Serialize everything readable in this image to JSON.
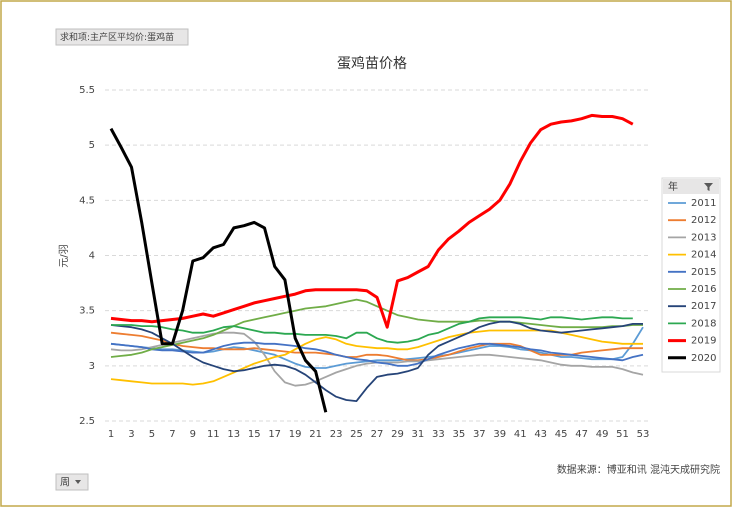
{
  "chart_data": {
    "type": "line",
    "filter_label": "求和项:主产区平均价:蛋鸡苗",
    "title": "蛋鸡苗价格",
    "y_label": "元/羽",
    "legend_title": "年",
    "x_filter_label": "周",
    "source": "数据来源：博亚和讯 混沌天成研究院",
    "categories": [
      1,
      null,
      3,
      null,
      5,
      null,
      7,
      null,
      9,
      null,
      11,
      null,
      13,
      null,
      15,
      null,
      17,
      null,
      19,
      null,
      21,
      null,
      23,
      null,
      25,
      null,
      27,
      null,
      29,
      null,
      31,
      null,
      33,
      null,
      35,
      null,
      37,
      null,
      39,
      null,
      41,
      null,
      43,
      null,
      45,
      null,
      47,
      null,
      49,
      null,
      51,
      null,
      53
    ],
    "ylim": [
      2.5,
      5.5
    ],
    "yticks": [
      2.5,
      3,
      3.5,
      4,
      4.5,
      5,
      5.5
    ],
    "grid": true,
    "legend": "right",
    "series": [
      {
        "name": "2011",
        "color": "#5b9bd5",
        "values": [
          3.2,
          3.19,
          3.18,
          3.17,
          3.16,
          3.15,
          3.15,
          3.14,
          3.13,
          3.12,
          3.13,
          3.15,
          3.17,
          3.16,
          3.14,
          3.12,
          3.1,
          3.06,
          3.02,
          2.99,
          2.98,
          2.98,
          3.0,
          3.02,
          3.03,
          3.04,
          3.05,
          3.05,
          3.05,
          3.06,
          3.07,
          3.08,
          3.09,
          3.1,
          3.12,
          3.14,
          3.16,
          3.18,
          3.18,
          3.17,
          3.15,
          3.14,
          3.12,
          3.1,
          3.08,
          3.08,
          3.07,
          3.06,
          3.06,
          3.06,
          3.08,
          3.2,
          3.35
        ]
      },
      {
        "name": "2012",
        "color": "#ed7d31",
        "values": [
          3.3,
          3.29,
          3.28,
          3.27,
          3.25,
          3.23,
          3.2,
          3.18,
          3.17,
          3.16,
          3.16,
          3.15,
          3.15,
          3.15,
          3.16,
          3.15,
          3.14,
          3.13,
          3.12,
          3.12,
          3.12,
          3.11,
          3.1,
          3.08,
          3.08,
          3.1,
          3.1,
          3.09,
          3.07,
          3.05,
          3.05,
          3.06,
          3.08,
          3.1,
          3.13,
          3.16,
          3.18,
          3.2,
          3.2,
          3.2,
          3.18,
          3.14,
          3.1,
          3.1,
          3.1,
          3.1,
          3.12,
          3.13,
          3.14,
          3.15,
          3.16,
          3.16,
          3.16
        ]
      },
      {
        "name": "2013",
        "color": "#a5a5a5",
        "values": [
          3.15,
          3.14,
          3.14,
          3.15,
          3.17,
          3.19,
          3.21,
          3.23,
          3.25,
          3.27,
          3.29,
          3.3,
          3.3,
          3.29,
          3.22,
          3.1,
          2.95,
          2.85,
          2.82,
          2.83,
          2.86,
          2.9,
          2.94,
          2.97,
          3.0,
          3.02,
          3.03,
          3.03,
          3.03,
          3.04,
          3.04,
          3.05,
          3.06,
          3.07,
          3.08,
          3.09,
          3.1,
          3.1,
          3.09,
          3.08,
          3.07,
          3.06,
          3.05,
          3.03,
          3.01,
          3.0,
          3.0,
          2.99,
          2.99,
          2.99,
          2.97,
          2.94,
          2.92
        ]
      },
      {
        "name": "2014",
        "color": "#ffc000",
        "values": [
          2.88,
          2.87,
          2.86,
          2.85,
          2.84,
          2.84,
          2.84,
          2.84,
          2.83,
          2.84,
          2.86,
          2.9,
          2.94,
          2.98,
          3.02,
          3.05,
          3.08,
          3.1,
          3.15,
          3.2,
          3.24,
          3.26,
          3.24,
          3.2,
          3.18,
          3.17,
          3.16,
          3.16,
          3.15,
          3.15,
          3.17,
          3.2,
          3.23,
          3.26,
          3.28,
          3.3,
          3.31,
          3.32,
          3.32,
          3.32,
          3.32,
          3.32,
          3.32,
          3.32,
          3.3,
          3.28,
          3.26,
          3.24,
          3.22,
          3.21,
          3.2,
          3.2,
          3.2
        ]
      },
      {
        "name": "2015",
        "color": "#4472c4",
        "values": [
          3.2,
          3.19,
          3.18,
          3.17,
          3.15,
          3.14,
          3.14,
          3.13,
          3.12,
          3.12,
          3.15,
          3.18,
          3.2,
          3.21,
          3.21,
          3.2,
          3.2,
          3.19,
          3.18,
          3.16,
          3.15,
          3.13,
          3.1,
          3.08,
          3.06,
          3.05,
          3.03,
          3.02,
          3.0,
          3.0,
          3.02,
          3.06,
          3.1,
          3.13,
          3.16,
          3.18,
          3.2,
          3.2,
          3.19,
          3.18,
          3.17,
          3.15,
          3.14,
          3.12,
          3.11,
          3.1,
          3.09,
          3.08,
          3.07,
          3.06,
          3.05,
          3.08,
          3.1
        ]
      },
      {
        "name": "2016",
        "color": "#70ad47",
        "values": [
          3.08,
          3.09,
          3.1,
          3.12,
          3.15,
          3.17,
          3.19,
          3.21,
          3.23,
          3.25,
          3.28,
          3.32,
          3.36,
          3.4,
          3.42,
          3.44,
          3.46,
          3.48,
          3.5,
          3.52,
          3.53,
          3.54,
          3.56,
          3.58,
          3.6,
          3.58,
          3.54,
          3.5,
          3.46,
          3.44,
          3.42,
          3.41,
          3.4,
          3.4,
          3.4,
          3.4,
          3.41,
          3.41,
          3.4,
          3.4,
          3.39,
          3.38,
          3.37,
          3.36,
          3.35,
          3.35,
          3.35,
          3.35,
          3.35,
          3.36,
          3.36,
          3.37,
          3.37
        ]
      },
      {
        "name": "2017",
        "color": "#264478",
        "values": [
          3.37,
          3.36,
          3.35,
          3.33,
          3.3,
          3.25,
          3.2,
          3.14,
          3.08,
          3.03,
          3.0,
          2.97,
          2.95,
          2.96,
          2.98,
          3.0,
          3.01,
          3.0,
          2.97,
          2.92,
          2.85,
          2.78,
          2.72,
          2.69,
          2.68,
          2.8,
          2.9,
          2.92,
          2.93,
          2.95,
          2.98,
          3.1,
          3.18,
          3.22,
          3.26,
          3.3,
          3.35,
          3.38,
          3.4,
          3.4,
          3.38,
          3.34,
          3.32,
          3.31,
          3.3,
          3.31,
          3.32,
          3.33,
          3.34,
          3.35,
          3.36,
          3.38,
          3.38
        ]
      },
      {
        "name": "2018",
        "color": "#2ca851",
        "values": [
          3.37,
          3.37,
          3.37,
          3.36,
          3.36,
          3.35,
          3.33,
          3.32,
          3.3,
          3.3,
          3.32,
          3.35,
          3.36,
          3.34,
          3.32,
          3.3,
          3.3,
          3.29,
          3.29,
          3.28,
          3.28,
          3.28,
          3.27,
          3.25,
          3.3,
          3.3,
          3.25,
          3.22,
          3.21,
          3.22,
          3.24,
          3.28,
          3.3,
          3.34,
          3.38,
          3.4,
          3.43,
          3.44,
          3.44,
          3.44,
          3.44,
          3.43,
          3.42,
          3.44,
          3.44,
          3.43,
          3.42,
          3.43,
          3.44,
          3.44,
          3.43,
          3.43,
          null
        ]
      },
      {
        "name": "2019",
        "color": "#ff0000",
        "values": [
          3.43,
          3.42,
          3.41,
          3.41,
          3.4,
          3.41,
          3.42,
          3.43,
          3.45,
          3.47,
          3.45,
          3.48,
          3.51,
          3.54,
          3.57,
          3.59,
          3.61,
          3.63,
          3.65,
          3.68,
          3.69,
          3.69,
          3.69,
          3.69,
          3.69,
          3.68,
          3.62,
          3.35,
          3.77,
          3.8,
          3.85,
          3.9,
          4.05,
          4.15,
          4.22,
          4.3,
          4.36,
          4.42,
          4.5,
          4.65,
          4.85,
          5.02,
          5.14,
          5.19,
          5.21,
          5.22,
          5.24,
          5.27,
          5.26,
          5.26,
          5.24,
          5.19,
          null
        ]
      },
      {
        "name": "2020",
        "color": "#000000",
        "values": [
          5.15,
          4.98,
          4.8,
          4.3,
          3.75,
          3.2,
          3.2,
          3.5,
          3.95,
          3.98,
          4.07,
          4.1,
          4.25,
          4.27,
          4.3,
          4.25,
          3.9,
          3.78,
          3.25,
          3.05,
          2.95,
          2.58,
          null,
          null,
          null,
          null,
          null,
          null,
          null,
          null,
          null,
          null,
          null,
          null,
          null,
          null,
          null,
          null,
          null,
          null,
          null,
          null,
          null,
          null,
          null,
          null,
          null,
          null,
          null,
          null,
          null,
          null,
          null
        ]
      }
    ]
  }
}
